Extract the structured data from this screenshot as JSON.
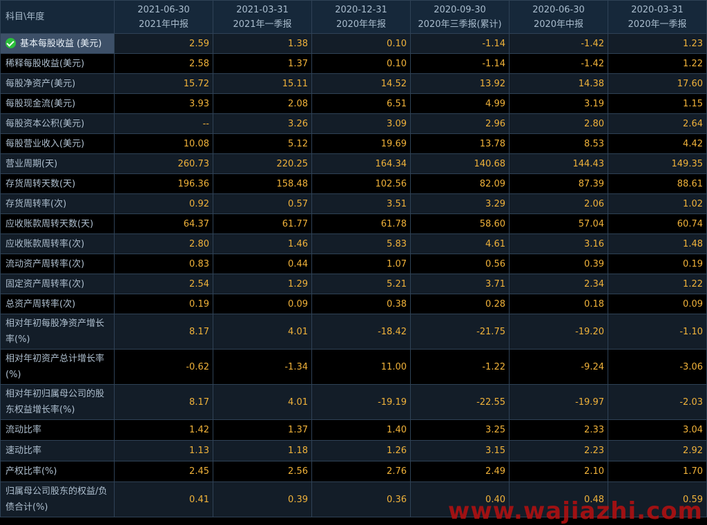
{
  "header": {
    "corner": "科目\\年度",
    "periods": [
      {
        "date": "2021-06-30",
        "label": "2021年中报"
      },
      {
        "date": "2021-03-31",
        "label": "2021年一季报"
      },
      {
        "date": "2020-12-31",
        "label": "2020年年报"
      },
      {
        "date": "2020-09-30",
        "label": "2020年三季报(累计)"
      },
      {
        "date": "2020-06-30",
        "label": "2020年中报"
      },
      {
        "date": "2020-03-31",
        "label": "2020年一季报"
      }
    ]
  },
  "rows": [
    {
      "label": "基本每股收益 (美元)",
      "values": [
        "2.59",
        "1.38",
        "0.10",
        "-1.14",
        "-1.42",
        "1.23"
      ]
    },
    {
      "label": "稀释每股收益(美元)",
      "values": [
        "2.58",
        "1.37",
        "0.10",
        "-1.14",
        "-1.42",
        "1.22"
      ]
    },
    {
      "label": "每股净资产(美元)",
      "values": [
        "15.72",
        "15.11",
        "14.52",
        "13.92",
        "14.38",
        "17.60"
      ]
    },
    {
      "label": "每股现金流(美元)",
      "values": [
        "3.93",
        "2.08",
        "6.51",
        "4.99",
        "3.19",
        "1.15"
      ]
    },
    {
      "label": "每股资本公积(美元)",
      "values": [
        "--",
        "3.26",
        "3.09",
        "2.96",
        "2.80",
        "2.64"
      ]
    },
    {
      "label": "每股营业收入(美元)",
      "values": [
        "10.08",
        "5.12",
        "19.69",
        "13.78",
        "8.53",
        "4.42"
      ]
    },
    {
      "label": "营业周期(天)",
      "values": [
        "260.73",
        "220.25",
        "164.34",
        "140.68",
        "144.43",
        "149.35"
      ]
    },
    {
      "label": "存货周转天数(天)",
      "values": [
        "196.36",
        "158.48",
        "102.56",
        "82.09",
        "87.39",
        "88.61"
      ]
    },
    {
      "label": "存货周转率(次)",
      "values": [
        "0.92",
        "0.57",
        "3.51",
        "3.29",
        "2.06",
        "1.02"
      ]
    },
    {
      "label": "应收账款周转天数(天)",
      "values": [
        "64.37",
        "61.77",
        "61.78",
        "58.60",
        "57.04",
        "60.74"
      ]
    },
    {
      "label": "应收账款周转率(次)",
      "values": [
        "2.80",
        "1.46",
        "5.83",
        "4.61",
        "3.16",
        "1.48"
      ]
    },
    {
      "label": "流动资产周转率(次)",
      "values": [
        "0.83",
        "0.44",
        "1.07",
        "0.56",
        "0.39",
        "0.19"
      ]
    },
    {
      "label": "固定资产周转率(次)",
      "values": [
        "2.54",
        "1.29",
        "5.21",
        "3.71",
        "2.34",
        "1.22"
      ]
    },
    {
      "label": "总资产周转率(次)",
      "values": [
        "0.19",
        "0.09",
        "0.38",
        "0.28",
        "0.18",
        "0.09"
      ]
    },
    {
      "label": "相对年初每股净资产增长率(%)",
      "values": [
        "8.17",
        "4.01",
        "-18.42",
        "-21.75",
        "-19.20",
        "-1.10"
      ]
    },
    {
      "label": "相对年初资产总计增长率(%)",
      "values": [
        "-0.62",
        "-1.34",
        "11.00",
        "-1.22",
        "-9.24",
        "-3.06"
      ]
    },
    {
      "label": "相对年初归属母公司的股东权益增长率(%)",
      "values": [
        "8.17",
        "4.01",
        "-19.19",
        "-22.55",
        "-19.97",
        "-2.03"
      ]
    },
    {
      "label": "流动比率",
      "values": [
        "1.42",
        "1.37",
        "1.40",
        "3.25",
        "2.33",
        "3.04"
      ]
    },
    {
      "label": "速动比率",
      "values": [
        "1.13",
        "1.18",
        "1.26",
        "3.15",
        "2.23",
        "2.92"
      ]
    },
    {
      "label": "产权比率(%)",
      "values": [
        "2.45",
        "2.56",
        "2.76",
        "2.49",
        "2.10",
        "1.70"
      ]
    },
    {
      "label": "归属母公司股东的权益/负债合计(%)",
      "values": [
        "0.41",
        "0.39",
        "0.36",
        "0.40",
        "0.48",
        "0.59"
      ]
    }
  ],
  "watermark": "www.wajiazhi.com"
}
